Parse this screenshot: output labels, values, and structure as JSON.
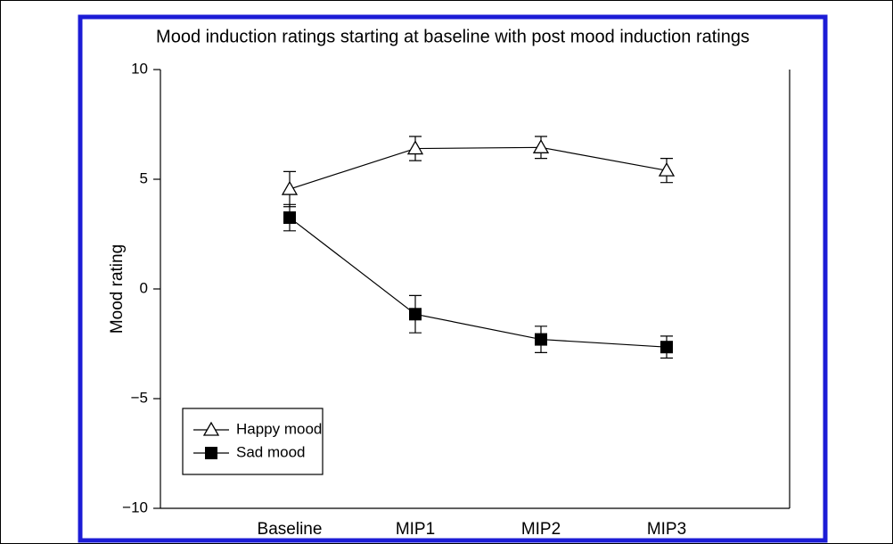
{
  "chart_data": {
    "type": "line",
    "title": "Mood induction ratings starting at baseline with post mood induction ratings",
    "ylabel": "Mood rating",
    "categories": [
      "Baseline",
      "MIP1",
      "MIP2",
      "MIP3"
    ],
    "series": [
      {
        "name": "Happy mood",
        "color": "#000000",
        "marker": "triangle-open",
        "values": [
          4.55,
          6.4,
          6.45,
          5.4
        ],
        "errors": [
          0.8,
          0.55,
          0.5,
          0.55
        ]
      },
      {
        "name": "Sad mood",
        "color": "#000000",
        "marker": "square-filled",
        "values": [
          3.25,
          -1.15,
          -2.3,
          -2.65
        ],
        "errors": [
          0.6,
          0.85,
          0.6,
          0.5
        ]
      }
    ],
    "ylim": [
      -10,
      10
    ],
    "yticks": [
      {
        "value": -10,
        "label": "−10"
      },
      {
        "value": -5,
        "label": "−5"
      },
      0,
      5,
      10
    ],
    "legend": "lower left",
    "frame_color": "#1c1cd6"
  }
}
